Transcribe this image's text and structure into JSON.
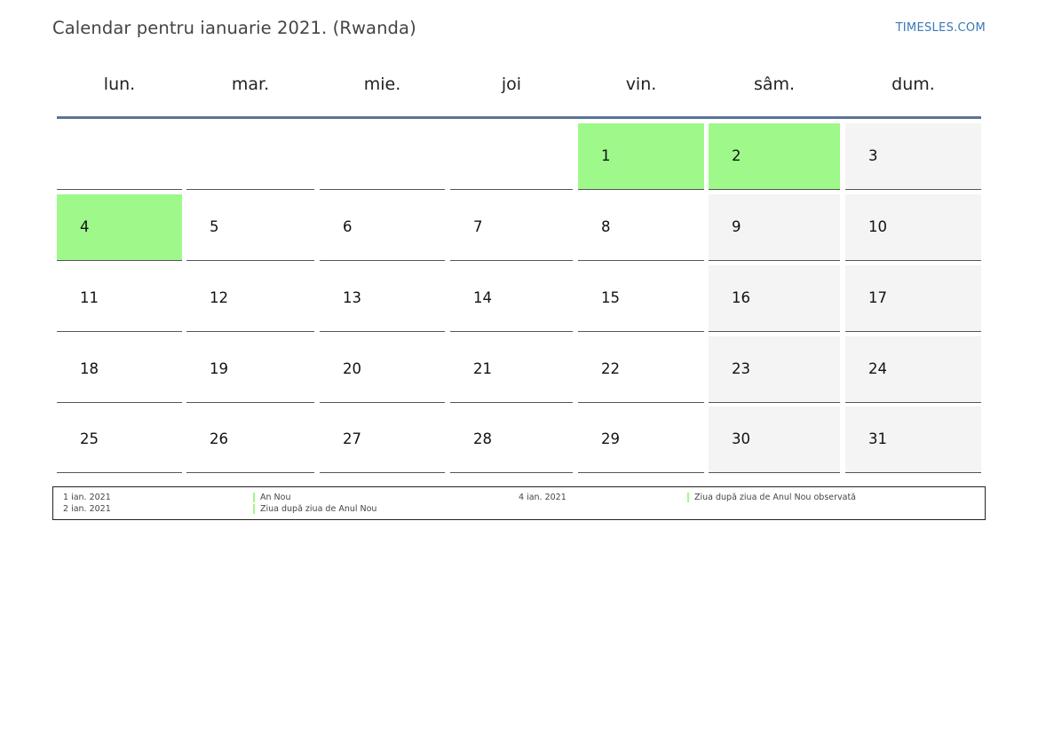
{
  "title": "Calendar pentru ianuarie 2021. (Rwanda)",
  "brand": "TIMESLES.COM",
  "colors": {
    "holiday": "#9ef98a",
    "weekend": "#f4f4f4",
    "header_rule": "#5a7496",
    "brand": "#3a78b5"
  },
  "weekdays": [
    "lun.",
    "mar.",
    "mie.",
    "joi",
    "vin.",
    "sâm.",
    "dum."
  ],
  "weeks": [
    [
      {
        "day": "",
        "type": "empty"
      },
      {
        "day": "",
        "type": "empty"
      },
      {
        "day": "",
        "type": "empty"
      },
      {
        "day": "",
        "type": "empty"
      },
      {
        "day": "1",
        "type": "holiday"
      },
      {
        "day": "2",
        "type": "holiday"
      },
      {
        "day": "3",
        "type": "weekend"
      }
    ],
    [
      {
        "day": "4",
        "type": "holiday"
      },
      {
        "day": "5",
        "type": "normal"
      },
      {
        "day": "6",
        "type": "normal"
      },
      {
        "day": "7",
        "type": "normal"
      },
      {
        "day": "8",
        "type": "normal"
      },
      {
        "day": "9",
        "type": "weekend"
      },
      {
        "day": "10",
        "type": "weekend"
      }
    ],
    [
      {
        "day": "11",
        "type": "normal"
      },
      {
        "day": "12",
        "type": "normal"
      },
      {
        "day": "13",
        "type": "normal"
      },
      {
        "day": "14",
        "type": "normal"
      },
      {
        "day": "15",
        "type": "normal"
      },
      {
        "day": "16",
        "type": "weekend"
      },
      {
        "day": "17",
        "type": "weekend"
      }
    ],
    [
      {
        "day": "18",
        "type": "normal"
      },
      {
        "day": "19",
        "type": "normal"
      },
      {
        "day": "20",
        "type": "normal"
      },
      {
        "day": "21",
        "type": "normal"
      },
      {
        "day": "22",
        "type": "normal"
      },
      {
        "day": "23",
        "type": "weekend"
      },
      {
        "day": "24",
        "type": "weekend"
      }
    ],
    [
      {
        "day": "25",
        "type": "normal"
      },
      {
        "day": "26",
        "type": "normal"
      },
      {
        "day": "27",
        "type": "normal"
      },
      {
        "day": "28",
        "type": "normal"
      },
      {
        "day": "29",
        "type": "normal"
      },
      {
        "day": "30",
        "type": "weekend"
      },
      {
        "day": "31",
        "type": "weekend"
      }
    ]
  ],
  "legend": [
    {
      "date": "1 ian. 2021",
      "name": "An Nou"
    },
    {
      "date": "2 ian. 2021",
      "name": "Ziua după ziua de Anul Nou"
    },
    {
      "date": "4 ian. 2021",
      "name": "Ziua după ziua de Anul Nou observată"
    }
  ]
}
